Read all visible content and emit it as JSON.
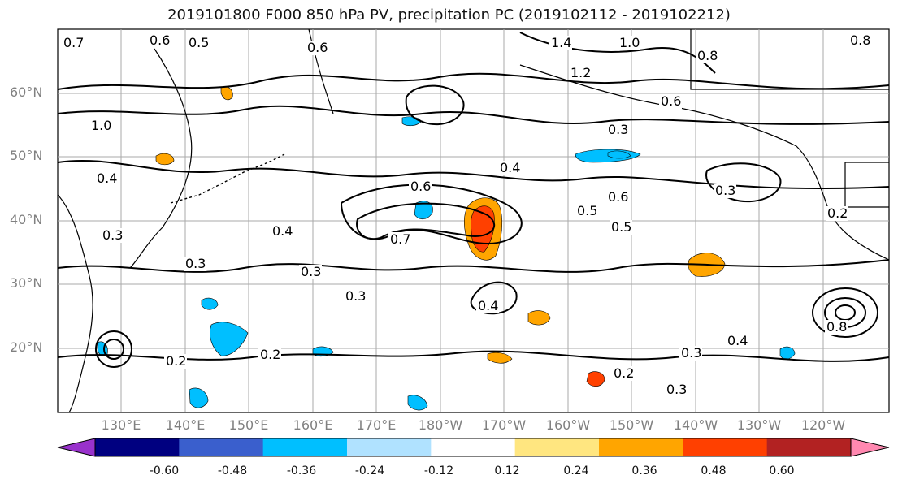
{
  "title": "2019101800 F000 850 hPa PV, precipitation PC (2019102112 - 2019102212)",
  "map": {
    "lat_labels": [
      "60°N",
      "50°N",
      "40°N",
      "30°N",
      "20°N"
    ],
    "lon_labels": [
      "130°E",
      "140°E",
      "150°E",
      "160°E",
      "170°E",
      "180°W",
      "170°W",
      "160°W",
      "150°W",
      "140°W",
      "130°W",
      "120°W"
    ],
    "contour_labels": [
      "0.7",
      "0.6",
      "0.5",
      "0.6",
      "1.4",
      "1.0",
      "0.8",
      "1.2",
      "0.6",
      "0.8",
      "0.3",
      "0.4",
      "0.6",
      "0.5",
      "0.3",
      "0.4",
      "0.3",
      "0.7",
      "0.6",
      "0.5",
      "0.3",
      "0.2",
      "0.4",
      "0.2",
      "0.3",
      "0.2",
      "0.3",
      "0.8",
      "0.2",
      "1.0",
      "0.4",
      "0.3",
      "0.3",
      "0.4"
    ]
  },
  "colorbar": {
    "ticks": [
      "-0.60",
      "-0.48",
      "-0.36",
      "-0.24",
      "-0.12",
      "0.12",
      "0.24",
      "0.36",
      "0.48",
      "0.60"
    ],
    "colors": [
      "#9932cc",
      "#000080",
      "#3a5fcd",
      "#00bfff",
      "#b0e2ff",
      "#ffffff",
      "#ffe680",
      "#ffa500",
      "#ff4000",
      "#b22222",
      "#ff88b0"
    ]
  },
  "colors": {
    "land_border": "#000000",
    "grid": "#aaaaaa",
    "contour": "#000000"
  }
}
